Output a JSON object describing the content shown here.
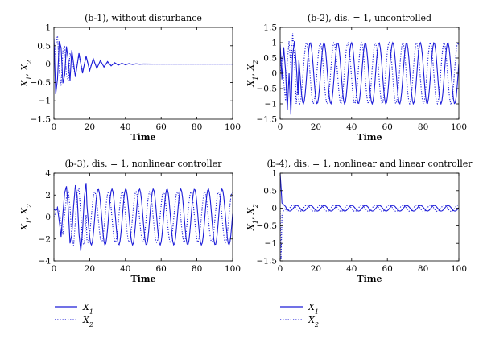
{
  "colors": {
    "series_color": "#1c1cd8",
    "axis_color": "#000000",
    "background": "#ffffff"
  },
  "legend": [
    {
      "name": "X",
      "sub": "1",
      "style": "solid"
    },
    {
      "name": "X",
      "sub": "2",
      "style": "dotted"
    }
  ],
  "chart_data": [
    {
      "type": "line",
      "title": "(b-1), without disturbance",
      "xlabel": "Time",
      "ylabel": "X1, X2",
      "xlim": [
        0,
        100
      ],
      "ylim": [
        -1.5,
        1
      ],
      "xticks": [
        "0",
        "20",
        "40",
        "60",
        "80",
        "100"
      ],
      "yticks": [
        "1",
        "0.5",
        "0",
        "−0.5",
        "−1",
        "−1.5"
      ],
      "ytick_values": [
        1,
        0.5,
        0,
        -0.5,
        -1,
        -1.5
      ],
      "grid": false,
      "series": [
        {
          "name": "X1",
          "style": "solid",
          "x": [
            0,
            1,
            2,
            3,
            4,
            5,
            6,
            7,
            8,
            9,
            10,
            12,
            14,
            16,
            18,
            20,
            22,
            24,
            26,
            28,
            30,
            32,
            34,
            36,
            38,
            40,
            42,
            44,
            46,
            48,
            50,
            55,
            60,
            70,
            80,
            90,
            100
          ],
          "y": [
            0.7,
            -0.82,
            -0.4,
            0.62,
            0.45,
            -0.52,
            -0.3,
            0.48,
            0.12,
            -0.45,
            0.38,
            -0.35,
            0.3,
            -0.25,
            0.22,
            -0.18,
            0.15,
            -0.12,
            0.1,
            -0.08,
            0.07,
            -0.05,
            0.04,
            -0.03,
            0.025,
            -0.02,
            0.015,
            -0.01,
            0.008,
            -0.005,
            0.004,
            0,
            0,
            0,
            0,
            0,
            0
          ]
        },
        {
          "name": "X2",
          "style": "dotted",
          "x": [
            0,
            1,
            2,
            3,
            4,
            5,
            6,
            7,
            8,
            9,
            10,
            12,
            14,
            16,
            18,
            20,
            22,
            24,
            26,
            28,
            30,
            32,
            34,
            36,
            38,
            40,
            42,
            44,
            46,
            48,
            50,
            55,
            60,
            70,
            80,
            90,
            100
          ],
          "y": [
            0.0,
            0.5,
            0.8,
            -0.2,
            -0.6,
            0.35,
            0.5,
            -0.3,
            -0.45,
            0.3,
            0.1,
            -0.3,
            0.25,
            -0.2,
            0.18,
            -0.15,
            0.12,
            -0.1,
            0.08,
            -0.06,
            0.05,
            -0.04,
            0.03,
            -0.02,
            0.015,
            -0.01,
            0.008,
            -0.005,
            0.004,
            0,
            0,
            0,
            0,
            0,
            0,
            0,
            0
          ]
        }
      ]
    },
    {
      "type": "line",
      "title": "(b-2), dis. = 1, uncontrolled",
      "xlabel": "Time",
      "ylabel": "X1, X2",
      "xlim": [
        0,
        100
      ],
      "ylim": [
        -1.5,
        1.5
      ],
      "xticks": [
        "0",
        "20",
        "40",
        "60",
        "80",
        "100"
      ],
      "yticks": [
        "1.5",
        "1",
        "0.5",
        "0",
        "−0.5",
        "−1",
        "−1.5"
      ],
      "ytick_values": [
        1.5,
        1,
        0.5,
        0,
        -0.5,
        -1,
        -1.5
      ],
      "grid": false,
      "series": [
        {
          "name": "X1",
          "style": "solid",
          "amplitude": 1.0,
          "period": 7.7,
          "phase": 0.4,
          "transient": [
            [
              0,
              0.95
            ],
            [
              1,
              -0.2
            ],
            [
              2,
              0.85
            ],
            [
              3,
              0.1
            ],
            [
              4,
              -1.2
            ],
            [
              5,
              0.0
            ],
            [
              6,
              -1.35
            ],
            [
              7,
              0.6
            ],
            [
              8,
              1.05
            ],
            [
              9,
              0.3
            ],
            [
              10,
              -0.7
            ]
          ]
        },
        {
          "name": "X2",
          "style": "dotted",
          "amplitude": 1.0,
          "period": 7.7,
          "phase": 2.1,
          "transient": [
            [
              0,
              0.0
            ],
            [
              1,
              0.6
            ],
            [
              2,
              -0.3
            ],
            [
              3,
              -0.9
            ],
            [
              4,
              0.4
            ],
            [
              5,
              1.05
            ],
            [
              6,
              0.2
            ],
            [
              7,
              1.3
            ],
            [
              8,
              0.5
            ],
            [
              9,
              -1.0
            ],
            [
              10,
              -0.3
            ]
          ]
        }
      ]
    },
    {
      "type": "line",
      "title": "(b-3), dis. = 1, nonlinear controller",
      "xlabel": "Time",
      "ylabel": "X1, X2",
      "xlim": [
        0,
        100
      ],
      "ylim": [
        -4,
        4
      ],
      "xticks": [
        "0",
        "20",
        "40",
        "60",
        "80",
        "100"
      ],
      "yticks": [
        "4",
        "2",
        "0",
        "−2",
        "−4"
      ],
      "ytick_values": [
        4,
        2,
        0,
        -2,
        -4
      ],
      "grid": false,
      "series": [
        {
          "name": "X1",
          "style": "solid",
          "amplitude": 2.55,
          "period": 7.7,
          "phase": 0.2,
          "transient": [
            [
              0,
              0.7
            ],
            [
              1,
              0.6
            ],
            [
              2,
              0.8
            ],
            [
              3,
              -0.4
            ],
            [
              4,
              -1.8
            ],
            [
              5,
              0.3
            ],
            [
              6,
              2.2
            ],
            [
              7,
              2.8
            ],
            [
              8,
              0.8
            ],
            [
              9,
              -2.4
            ],
            [
              10,
              -1.6
            ],
            [
              11,
              1.0
            ],
            [
              12,
              2.9
            ],
            [
              13,
              1.9
            ],
            [
              14,
              -1.5
            ],
            [
              15,
              -3.1
            ],
            [
              16,
              -1.3
            ],
            [
              17,
              1.8
            ],
            [
              18,
              3.1
            ]
          ]
        },
        {
          "name": "X2",
          "style": "dotted",
          "amplitude": 2.3,
          "period": 7.7,
          "phase": 1.8,
          "transient": [
            [
              0,
              0.0
            ],
            [
              1,
              0.4
            ],
            [
              2,
              0.9
            ],
            [
              3,
              0.6
            ],
            [
              4,
              -0.7
            ],
            [
              5,
              -1.6
            ],
            [
              6,
              0.2
            ],
            [
              7,
              1.8
            ],
            [
              8,
              2.4
            ],
            [
              9,
              0.9
            ],
            [
              10,
              -1.9
            ],
            [
              11,
              -2.6
            ],
            [
              12,
              -0.4
            ],
            [
              13,
              2.2
            ],
            [
              14,
              2.6
            ],
            [
              15,
              0.4
            ],
            [
              16,
              -2.4
            ],
            [
              17,
              -2.5
            ],
            [
              18,
              0.2
            ]
          ]
        }
      ]
    },
    {
      "type": "line",
      "title": "(b-4), dis. = 1, nonlinear and linear controller",
      "xlabel": "Time",
      "ylabel": "X1, X2",
      "xlim": [
        0,
        100
      ],
      "ylim": [
        -1.5,
        1
      ],
      "xticks": [
        "0",
        "20",
        "40",
        "60",
        "80",
        "100"
      ],
      "yticks": [
        "1",
        "0.5",
        "0",
        "−0.5",
        "−1",
        "−1.5"
      ],
      "ytick_values": [
        1,
        0.5,
        0,
        -0.5,
        -1,
        -1.5
      ],
      "grid": false,
      "series": [
        {
          "name": "X1",
          "style": "solid",
          "amplitude": 0.08,
          "period": 7.7,
          "phase": 0.3,
          "transient": [
            [
              0,
              0.98
            ],
            [
              0.5,
              0.6
            ],
            [
              1,
              0.15
            ],
            [
              2,
              0.1
            ],
            [
              3,
              0.05
            ]
          ]
        },
        {
          "name": "X2",
          "style": "dotted",
          "amplitude": 0.09,
          "period": 7.7,
          "phase": 2.0,
          "transient": [
            [
              0,
              0.0
            ],
            [
              0.5,
              -1.45
            ],
            [
              1,
              -0.2
            ],
            [
              2,
              -0.05
            ],
            [
              3,
              0.0
            ]
          ]
        }
      ]
    }
  ]
}
